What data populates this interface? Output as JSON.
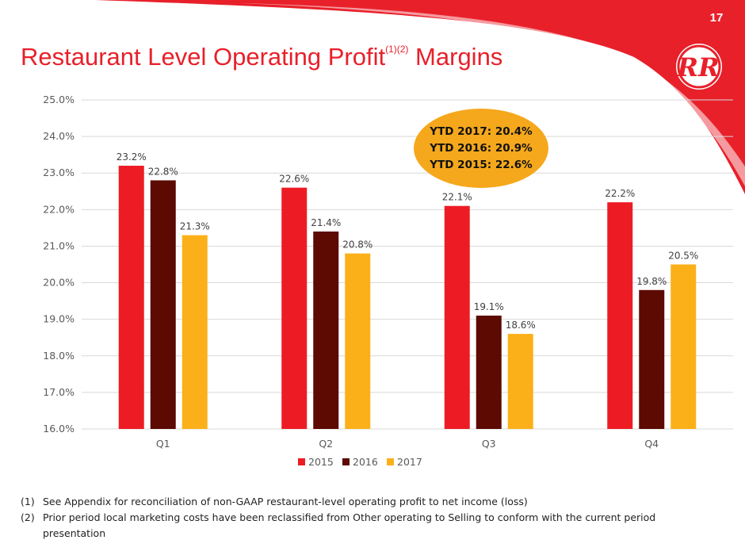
{
  "page": {
    "number": "17",
    "title": "Restaurant Level Operating Profit",
    "title_superscript": "(1)(2)",
    "title_suffix": " Margins"
  },
  "logo": {
    "icon": "red-robin-rr-logo",
    "text": "RR"
  },
  "ytd_callout": [
    "YTD 2017: 20.4%",
    "YTD 2016: 20.9%",
    "YTD 2015: 22.6%"
  ],
  "footnotes": [
    {
      "num": "(1)",
      "text": "See Appendix for reconciliation of non-GAAP restaurant-level operating profit to net income (loss)"
    },
    {
      "num": "(2)",
      "text": "Prior period local marketing costs have been reclassified from Other operating to Selling to conform with the current period presentation"
    }
  ],
  "colors": {
    "2015": "#ed1c24",
    "2016": "#5c0a02",
    "2017": "#fbb019",
    "brand": "#e8202a"
  },
  "chart_data": {
    "type": "bar",
    "categories": [
      "Q1",
      "Q2",
      "Q3",
      "Q4"
    ],
    "series": [
      {
        "name": "2015",
        "values": [
          23.2,
          22.6,
          22.1,
          22.2
        ],
        "labels": [
          "23.2%",
          "22.6%",
          "22.1%",
          "22.2%"
        ]
      },
      {
        "name": "2016",
        "values": [
          22.8,
          21.4,
          19.1,
          19.8
        ],
        "labels": [
          "22.8%",
          "21.4%",
          "19.1%",
          "19.8%"
        ]
      },
      {
        "name": "2017",
        "values": [
          21.3,
          20.8,
          18.6,
          20.5
        ],
        "labels": [
          "21.3%",
          "20.8%",
          "18.6%",
          "20.5%"
        ]
      }
    ],
    "ylim": [
      16.0,
      25.0
    ],
    "yticks": [
      "16.0%",
      "17.0%",
      "18.0%",
      "19.0%",
      "20.0%",
      "21.0%",
      "22.0%",
      "23.0%",
      "24.0%",
      "25.0%"
    ],
    "grid": true,
    "legend": "bottom"
  }
}
